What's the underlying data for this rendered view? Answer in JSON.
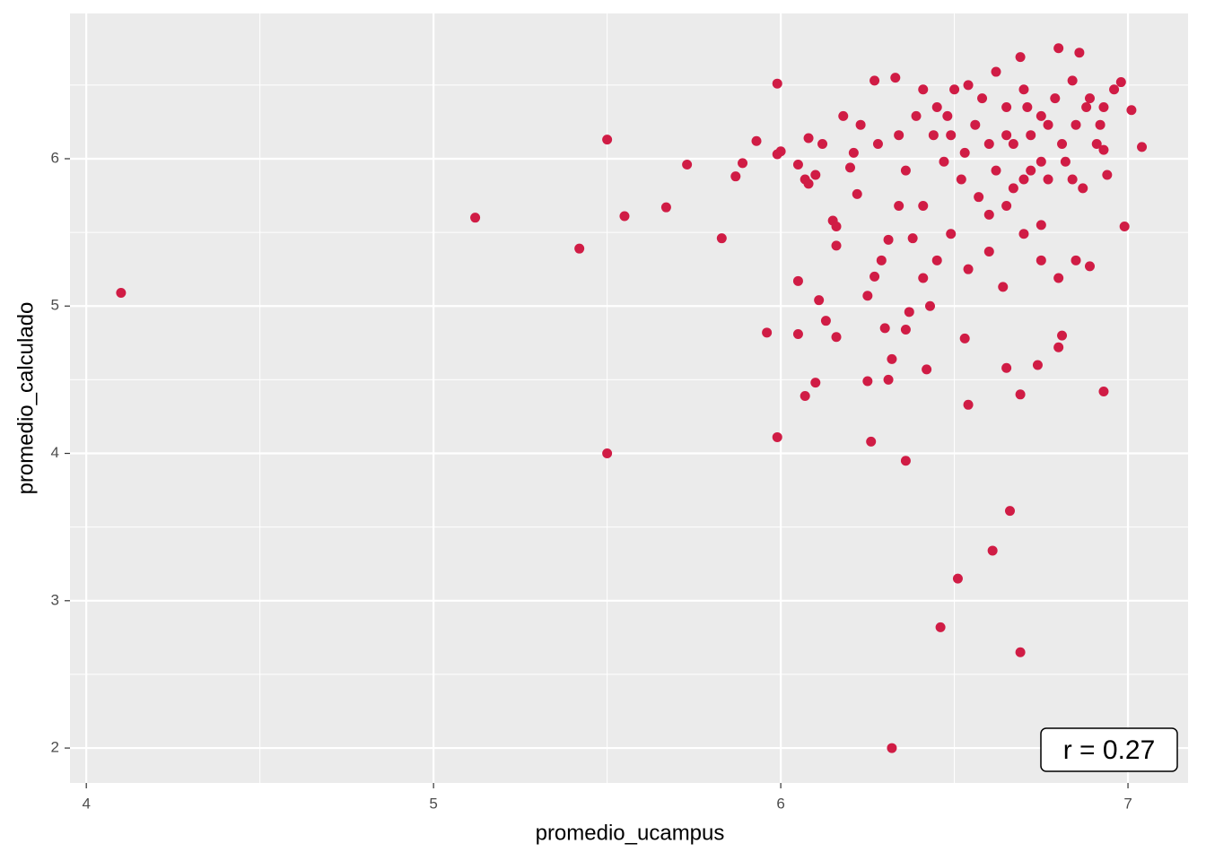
{
  "chart_data": {
    "type": "scatter",
    "x_label": "promedio_ucampus",
    "y_label": "promedio_calculado",
    "annotation": "r = 0.27",
    "color": "#d01c45",
    "xlim": [
      3.953,
      7.173
    ],
    "ylim": [
      1.763,
      6.986
    ],
    "xticks": [
      4,
      5,
      6,
      7
    ],
    "yticks": [
      2,
      3,
      4,
      5,
      6
    ],
    "xminor": [
      4.5,
      5.5,
      6.5
    ],
    "yminor": [
      2.5,
      3.5,
      4.5,
      5.5,
      6.5
    ],
    "grid": true,
    "x": [
      4.1,
      5.12,
      5.42,
      5.5,
      5.5,
      5.55,
      5.67,
      5.73,
      5.83,
      5.87,
      5.89,
      5.93,
      5.99,
      5.99,
      6.0,
      5.96,
      5.99,
      6.05,
      6.05,
      6.05,
      6.07,
      6.07,
      6.08,
      6.08,
      6.1,
      6.1,
      6.11,
      6.12,
      6.13,
      6.15,
      6.16,
      6.16,
      6.16,
      6.2,
      6.22,
      6.25,
      6.25,
      6.26,
      6.27,
      6.27,
      6.29,
      6.3,
      6.31,
      6.31,
      6.32,
      6.32,
      6.33,
      6.36,
      6.36,
      6.37,
      6.38,
      6.42,
      6.43,
      6.46,
      6.51,
      6.53,
      6.54,
      6.61,
      6.65,
      6.66,
      6.69,
      6.69,
      6.69,
      6.74,
      6.8,
      6.8,
      6.81,
      6.86,
      6.93,
      6.99,
      7.04,
      7.01,
      6.98,
      6.44,
      6.48,
      6.5,
      6.54,
      6.58,
      6.62,
      6.65,
      6.7,
      6.75,
      6.79,
      6.84,
      6.88,
      6.92,
      6.96,
      6.47,
      6.52,
      6.57,
      6.62,
      6.67,
      6.72,
      6.77,
      6.82,
      6.87,
      6.91,
      6.34,
      6.36,
      6.39,
      6.28,
      6.23,
      6.18,
      6.21,
      6.41,
      6.49,
      6.54,
      6.6,
      6.64,
      6.7,
      6.75,
      6.8,
      6.85,
      6.89,
      6.75,
      6.6,
      6.45,
      6.41,
      6.34,
      6.67,
      6.72,
      6.77,
      6.81,
      6.85,
      6.89,
      6.93,
      6.71,
      6.65,
      6.6,
      6.56,
      6.53,
      6.49,
      6.45,
      6.41,
      6.65,
      6.7,
      6.75,
      6.84,
      6.94,
      6.93
    ],
    "y": [
      5.09,
      5.6,
      5.39,
      6.13,
      4.0,
      5.61,
      5.67,
      5.96,
      5.46,
      5.88,
      5.97,
      6.12,
      6.51,
      6.03,
      6.05,
      4.82,
      4.11,
      5.96,
      5.17,
      4.81,
      4.39,
      5.86,
      5.83,
      6.14,
      5.89,
      4.48,
      5.04,
      6.1,
      4.9,
      5.58,
      4.79,
      5.41,
      5.54,
      5.94,
      5.76,
      5.07,
      4.49,
      4.08,
      5.2,
      6.53,
      5.31,
      4.85,
      5.45,
      4.5,
      4.64,
      2.0,
      6.55,
      4.84,
      3.95,
      4.96,
      5.46,
      4.57,
      5.0,
      2.82,
      3.15,
      4.78,
      4.33,
      3.34,
      4.58,
      3.61,
      4.4,
      2.65,
      6.69,
      4.6,
      6.75,
      4.72,
      4.8,
      6.72,
      4.42,
      5.54,
      6.08,
      6.33,
      6.52,
      6.16,
      6.29,
      6.47,
      6.5,
      6.41,
      6.59,
      6.35,
      6.47,
      6.29,
      6.41,
      6.53,
      6.35,
      6.23,
      6.47,
      5.98,
      5.86,
      5.74,
      5.92,
      5.8,
      5.92,
      5.86,
      5.98,
      5.8,
      6.1,
      6.16,
      5.92,
      6.29,
      6.1,
      6.23,
      6.29,
      6.04,
      5.68,
      5.49,
      5.25,
      5.37,
      5.13,
      5.49,
      5.31,
      5.19,
      5.31,
      5.27,
      5.55,
      5.62,
      5.31,
      5.19,
      5.68,
      6.1,
      6.16,
      6.23,
      6.1,
      6.23,
      6.41,
      6.35,
      6.35,
      6.16,
      6.1,
      6.23,
      6.04,
      6.16,
      6.35,
      6.47,
      5.68,
      5.86,
      5.98,
      5.86,
      5.89,
      6.06
    ]
  }
}
